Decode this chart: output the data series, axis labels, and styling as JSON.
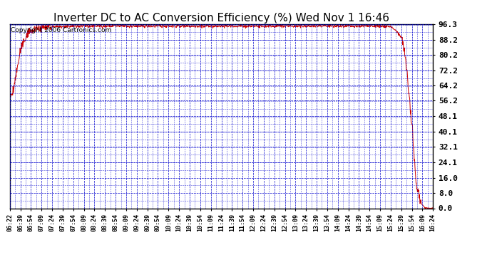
{
  "title": "Inverter DC to AC Conversion Efficiency (%) Wed Nov 1 16:46",
  "copyright_text": "Copyright 2006 Cartronics.com",
  "background_color": "#ffffff",
  "plot_bg_color": "#ffffff",
  "line_color": "#cc0000",
  "grid_color": "#0000cc",
  "y_ticks": [
    0.0,
    8.0,
    16.0,
    24.1,
    32.1,
    40.1,
    48.1,
    56.2,
    64.2,
    72.2,
    80.2,
    88.2,
    96.3
  ],
  "y_min": 0.0,
  "y_max": 96.3,
  "x_tick_labels": [
    "06:22",
    "06:39",
    "06:54",
    "07:09",
    "07:24",
    "07:39",
    "07:54",
    "08:09",
    "08:24",
    "08:39",
    "08:54",
    "09:09",
    "09:24",
    "09:39",
    "09:54",
    "10:09",
    "10:24",
    "10:39",
    "10:54",
    "11:09",
    "11:24",
    "11:39",
    "11:54",
    "12:09",
    "12:24",
    "12:39",
    "12:54",
    "13:09",
    "13:24",
    "13:39",
    "13:54",
    "14:09",
    "14:24",
    "14:39",
    "14:54",
    "15:09",
    "15:24",
    "15:39",
    "15:54",
    "16:09",
    "16:24"
  ],
  "title_fontsize": 11,
  "copyright_fontsize": 6.5,
  "tick_fontsize": 6,
  "ytick_fontsize": 8
}
